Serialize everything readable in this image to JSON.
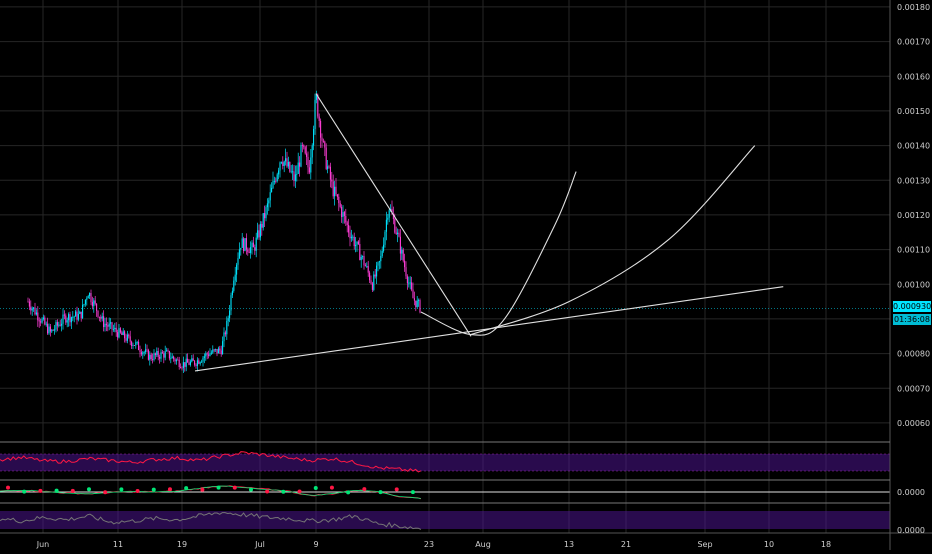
{
  "chart_data": [
    {
      "type": "line",
      "subtype": "candlestick",
      "x_ticks": [
        "Jun",
        "11",
        "19",
        "Jul",
        "9",
        "23",
        "Aug",
        "13",
        "21",
        "Sep",
        "10",
        "18"
      ],
      "y_ticks": [
        "0.00180",
        "0.00170",
        "0.00160",
        "0.00150",
        "0.00140",
        "0.00130",
        "0.00120",
        "0.00110",
        "0.00100",
        "0.00090",
        "0.00080",
        "0.00070",
        "0.00060"
      ],
      "ylim": [
        0.000545,
        0.00182
      ],
      "grid": true,
      "colors": {
        "up": "#00e5ff",
        "down": "#ff3dd6",
        "drawing": "#e0e0e0",
        "background": "#000000",
        "grid": "#262626"
      },
      "price_path": [
        [
          "May 30",
          0.00095
        ],
        [
          "Jun 2",
          0.00086
        ],
        [
          "Jun 4",
          0.000905
        ],
        [
          "Jun 6",
          0.00091
        ],
        [
          "Jun 7",
          0.00098
        ],
        [
          "Jun 9",
          0.00089
        ],
        [
          "Jun 11",
          0.00086
        ],
        [
          "Jun 13",
          0.00083
        ],
        [
          "Jun 15",
          0.00079
        ],
        [
          "Jun 17",
          0.0008
        ],
        [
          "Jun 19",
          0.00077
        ],
        [
          "Jun 21",
          0.000775
        ],
        [
          "Jun 23",
          0.0008
        ],
        [
          "Jun 25",
          0.00081
        ],
        [
          "Jun 26",
          0.00089
        ],
        [
          "Jun 27",
          0.00103
        ],
        [
          "Jun 28",
          0.00112
        ],
        [
          "Jun 30",
          0.0011
        ],
        [
          "Jul 2",
          0.00122
        ],
        [
          "Jul 4",
          0.00137
        ],
        [
          "Jul 6",
          0.0013
        ],
        [
          "Jul 7",
          0.00139
        ],
        [
          "Jul 8",
          0.00133
        ],
        [
          "Jul 9",
          0.00154
        ],
        [
          "Jul 10",
          0.00138
        ],
        [
          "Jul 11",
          0.00128
        ],
        [
          "Jul 13",
          0.00116
        ],
        [
          "Jul 15",
          0.00106
        ],
        [
          "Jul 16",
          0.001
        ],
        [
          "Jul 17",
          0.00107
        ],
        [
          "Jul 18",
          0.00123
        ],
        [
          "Jul 19",
          0.00115
        ],
        [
          "Jul 20",
          0.00105
        ],
        [
          "Jul 21",
          0.00096
        ],
        [
          "Jul 22",
          0.00093
        ]
      ],
      "last_price": "0.000930",
      "countdown": "01:36:08",
      "drawings": [
        {
          "name": "ascending trendline",
          "points": [
            [
              "Jun 21",
              0.00075
            ],
            [
              "Sep 12",
              0.000993
            ]
          ]
        },
        {
          "name": "descending trendline",
          "points": [
            [
              "Jul 9",
              0.00155
            ],
            [
              "Jul 30",
              0.00085
            ]
          ]
        },
        {
          "name": "parabolic curve projection",
          "points": [
            [
              "Jul 22",
              0.00092
            ],
            [
              "Jul 30",
              0.000855
            ],
            [
              "Aug 4",
              0.0009
            ],
            [
              "Aug 11",
              0.00117
            ],
            [
              "Aug 14",
              0.001325
            ]
          ]
        },
        {
          "name": "parabolic curve projection",
          "points": [
            [
              "Jul 30",
              0.000855
            ],
            [
              "Aug 13",
              0.00095
            ],
            [
              "Aug 27",
              0.00113
            ],
            [
              "Sep 8",
              0.0014
            ]
          ]
        }
      ]
    },
    {
      "type": "line",
      "name": "oscillator",
      "color": "#ff1744",
      "band_color": "#4a148c",
      "values": [
        0.55,
        0.62,
        0.5,
        0.48,
        0.58,
        0.52,
        0.45,
        0.55,
        0.6,
        0.52,
        0.66,
        0.78,
        0.7,
        0.6,
        0.52,
        0.58,
        0.45,
        0.28,
        0.22,
        0.15
      ]
    },
    {
      "type": "line",
      "name": "momentum",
      "y_tick": "0.0000",
      "colors": {
        "fast": "#ff1744",
        "slow": "#00e676",
        "dots": [
          "#ff1744",
          "#00e676"
        ]
      },
      "values": [
        0.1,
        0.2,
        0.05,
        -0.1,
        -0.2,
        -0.05,
        0.05,
        0.0,
        0.1,
        0.4,
        0.7,
        0.5,
        0.3,
        0.1,
        -0.4,
        -0.2,
        0.2,
        0.1,
        -0.5,
        -0.7
      ]
    },
    {
      "type": "line",
      "name": "rsi",
      "y_tick": "0.0000",
      "color": "#757575",
      "band_color": "#4a148c",
      "values": [
        0.5,
        0.4,
        0.55,
        0.45,
        0.6,
        0.35,
        0.4,
        0.5,
        0.45,
        0.6,
        0.75,
        0.65,
        0.55,
        0.5,
        0.4,
        0.45,
        0.6,
        0.3,
        0.2,
        0.1
      ]
    }
  ]
}
